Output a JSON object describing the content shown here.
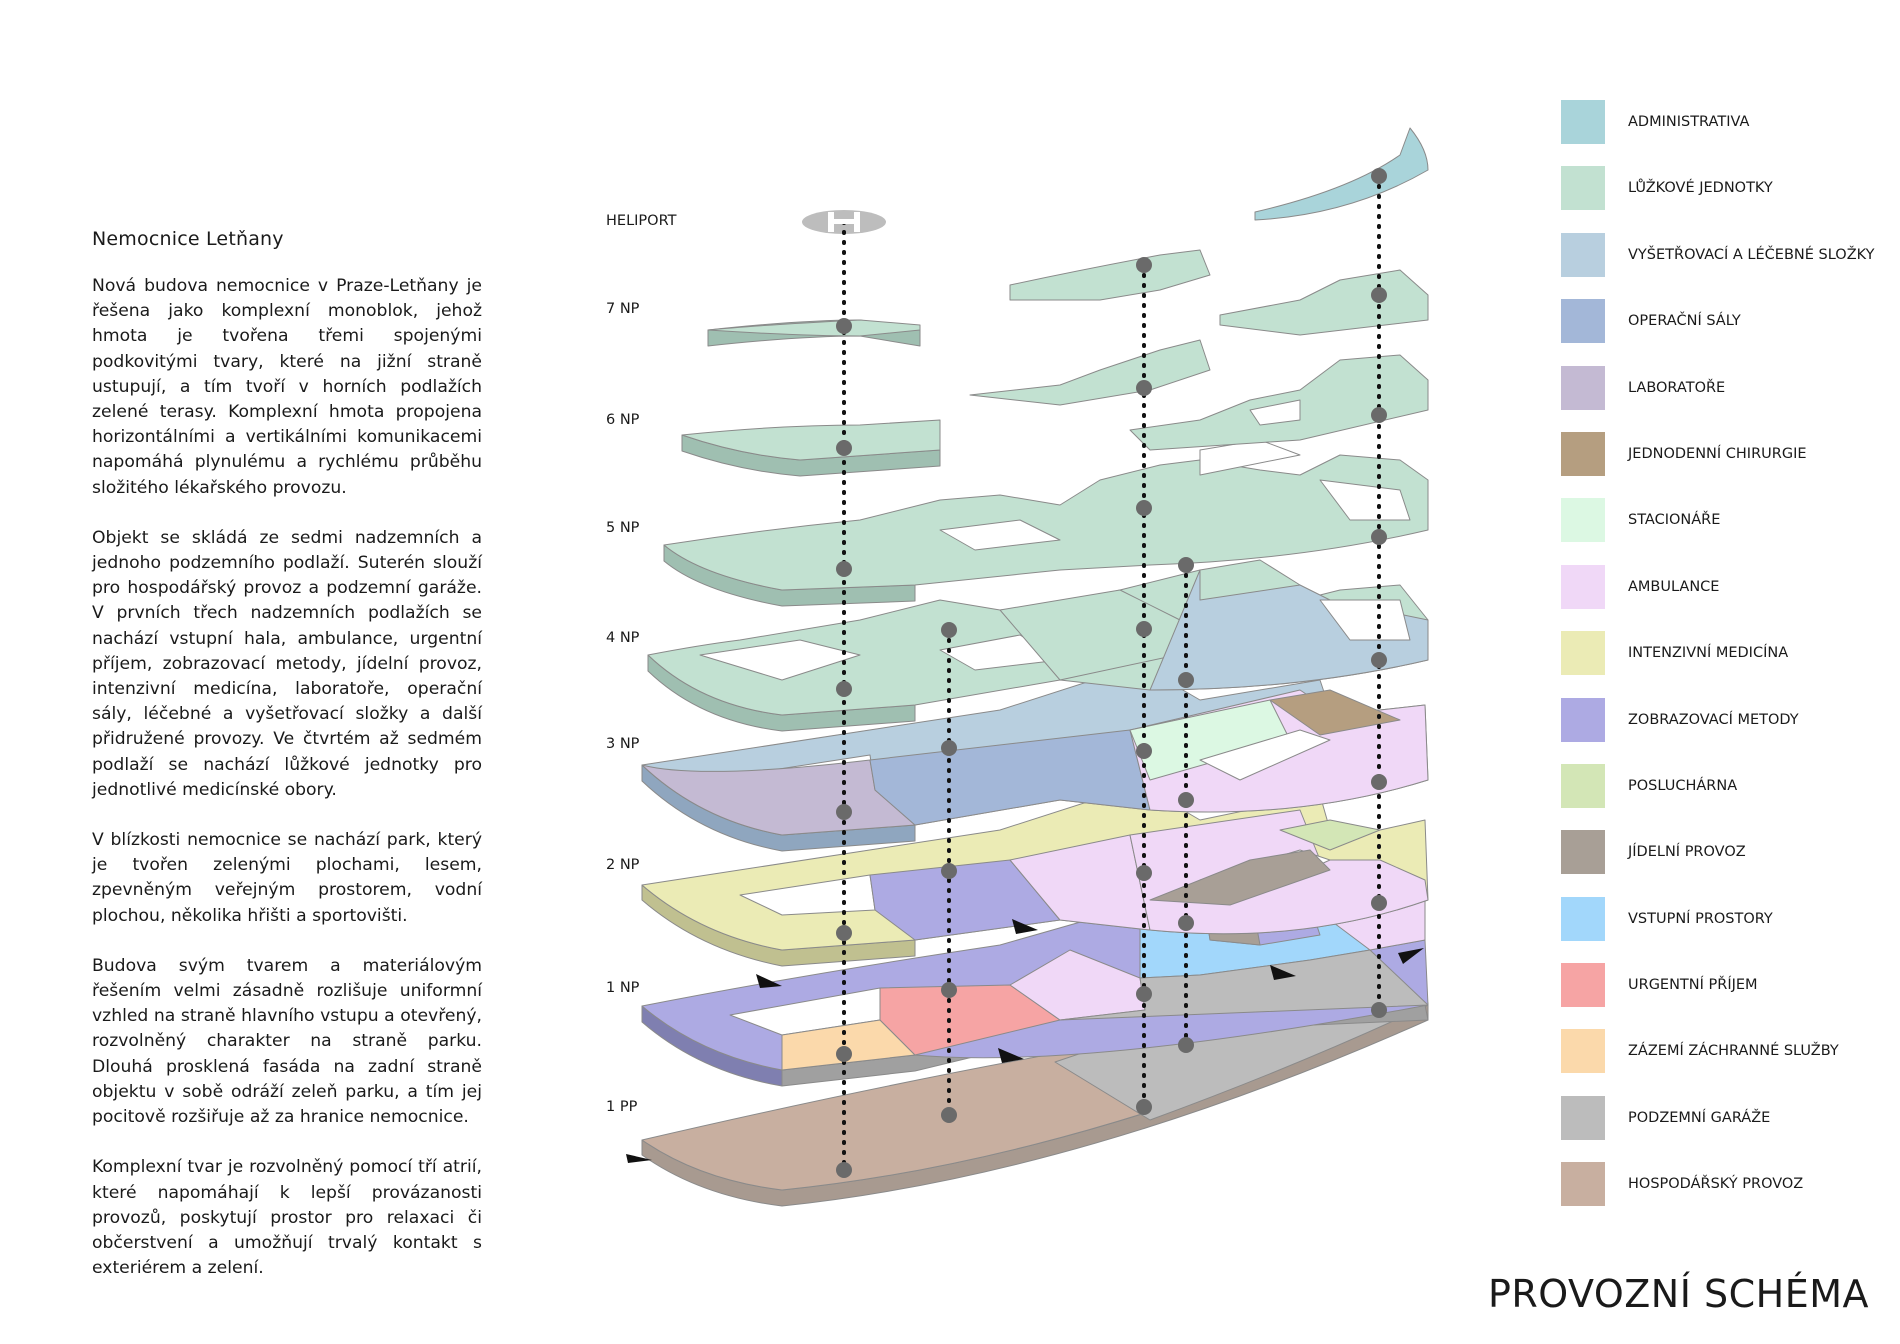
{
  "text": {
    "title": "Nemocnice Letňany",
    "paragraphs": [
      "Nová budova nemocnice v Praze-Letňany je řešena jako komplexní monoblok, jehož hmota je tvořena třemi spojenými podkovitými tvary, které na jižní straně ustupují, a tím tvoří v horních podlažích zelené terasy. Komplexní hmota propojena horizontálními a vertikálními komunikacemi napomáhá plynulému a rychlému průběhu složitého lékařského provozu.",
      "Objekt se skládá ze sedmi nadzemních a jednoho podzemního podlaží. Suterén slouží pro hospodářský provoz a podzemní garáže. V prvních třech nadzemních podlažích se nachází vstupní hala, ambulance, urgentní příjem, zobrazovací metody, jídelní provoz, intenzivní medicína, laboratoře, operační sály, léčebné a vyšetřovací složky a další přidružené provozy. Ve čtvrtém až sedmém podlaží se nachází lůžkové jednotky pro jednotlivé medicínské obory.",
      "V blízkosti nemocnice se nachází park, který je tvořen zelenými plochami, lesem, zpevněným veřejným prostorem, vodní plochou, několika hřišti a sportovišti.",
      "Budova svým tvarem a materiálovým řešením velmi zásadně rozlišuje uniformní vzhled na straně hlavního vstupu a otevřený, rozvolněný charakter na straně parku. Dlouhá prosklená fasáda na zadní straně objektu v sobě odráží zeleň parku, a tím jej pocitově rozšiřuje až za hranice nemocnice.",
      "Komplexní tvar je rozvolněný pomocí tří atrií, které napomáhají k lepší provázanosti provozů, poskytují prostor pro relaxaci či občerstvení a umožňují trvalý kontakt s exteriérem a zelení."
    ]
  },
  "floors": [
    "HELIPORT",
    "7 NP",
    "6 NP",
    "5 NP",
    "4 NP",
    "3 NP",
    "2 NP",
    "1 NP",
    "1 PP"
  ],
  "legend": [
    {
      "label": "ADMINISTRATIVA",
      "color": "#a9d4da"
    },
    {
      "label": "LŮŽKOVÉ JEDNOTKY",
      "color": "#c2e1d1"
    },
    {
      "label": "VYŠETŘOVACÍ A LÉČEBNÉ SLOŽKY",
      "color": "#b8cfdf"
    },
    {
      "label": "OPERAČNÍ SÁLY",
      "color": "#a3b7d8"
    },
    {
      "label": "LABORATOŘE",
      "color": "#c4bad3"
    },
    {
      "label": "JEDNODENNÍ CHIRURGIE",
      "color": "#b59e80"
    },
    {
      "label": "STACIONÁŘE",
      "color": "#dcf8e3"
    },
    {
      "label": "AMBULANCE",
      "color": "#f0d8f7"
    },
    {
      "label": "INTENZIVNÍ MEDICÍNA",
      "color": "#ebebb5"
    },
    {
      "label": "ZOBRAZOVACÍ METODY",
      "color": "#adaae3"
    },
    {
      "label": "POSLUCHÁRNA",
      "color": "#d3e6b6"
    },
    {
      "label": "JÍDELNÍ PROVOZ",
      "color": "#a89f96"
    },
    {
      "label": "VSTUPNÍ PROSTORY",
      "color": "#a2d7fb"
    },
    {
      "label": "URGENTNÍ PŘÍJEM",
      "color": "#f6a4a4"
    },
    {
      "label": "ZÁZEMÍ ZÁCHRANNÉ SLUŽBY",
      "color": "#fbd9ab"
    },
    {
      "label": "PODZEMNÍ GARÁŽE",
      "color": "#bcbcbc"
    },
    {
      "label": "HOSPODÁŘSKÝ PROVOZ",
      "color": "#c8afa0"
    }
  ],
  "page_title": "PROVOZNÍ SCHÉMA"
}
